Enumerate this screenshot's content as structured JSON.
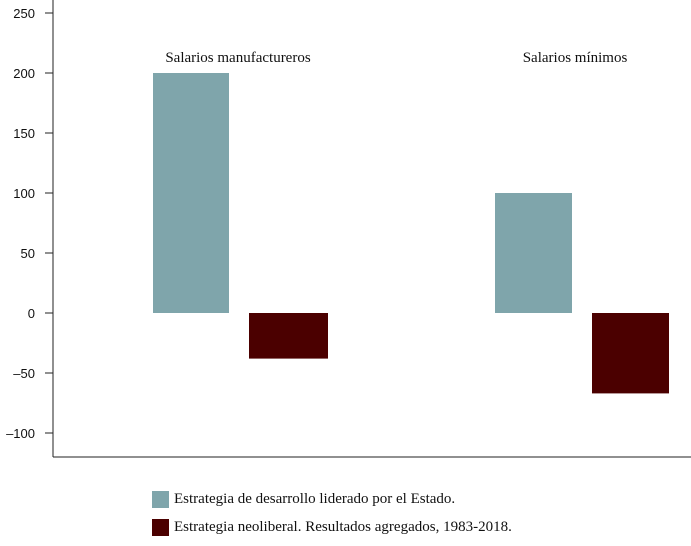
{
  "chart_data": {
    "type": "bar",
    "categories": [
      "Salarios manufactureros",
      "Salarios mínimos"
    ],
    "series": [
      {
        "name": "Estrategia de desarrollo liderado por el Estado.",
        "color": "#7fa5ab",
        "values": [
          200,
          100
        ]
      },
      {
        "name": "Estrategia neoliberal. Resultados agregados, 1983-2018.",
        "color": "#4b0000",
        "values": [
          -38,
          -67
        ]
      }
    ],
    "yticks": [
      "250",
      "200",
      "150",
      "100",
      "50",
      "0",
      "–50",
      "–100"
    ],
    "ytick_values": [
      250,
      200,
      150,
      100,
      50,
      0,
      -50,
      -100
    ],
    "ylim": [
      -110,
      250
    ],
    "grid": false,
    "legend_position": "bottom"
  }
}
